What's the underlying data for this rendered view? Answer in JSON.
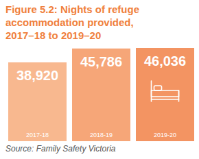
{
  "chart_data": {
    "type": "bar",
    "title": "Figure 5.2: Nights of refuge accommodation provided, 2017–18 to 2019–20",
    "categories": [
      "2017-18",
      "2018-19",
      "2019-20"
    ],
    "values": [
      38920,
      45786,
      46036
    ],
    "value_labels": [
      "38,920",
      "45,786",
      "46,036"
    ],
    "colors": [
      "#f8b88f",
      "#f6a678",
      "#f39462"
    ],
    "data_labels": true,
    "tick_labels": "x",
    "ylim": [
      0,
      46036
    ],
    "yticks": [
      0,
      46036
    ],
    "annotations": [
      "Source: Family Safety Victoria"
    ]
  }
}
